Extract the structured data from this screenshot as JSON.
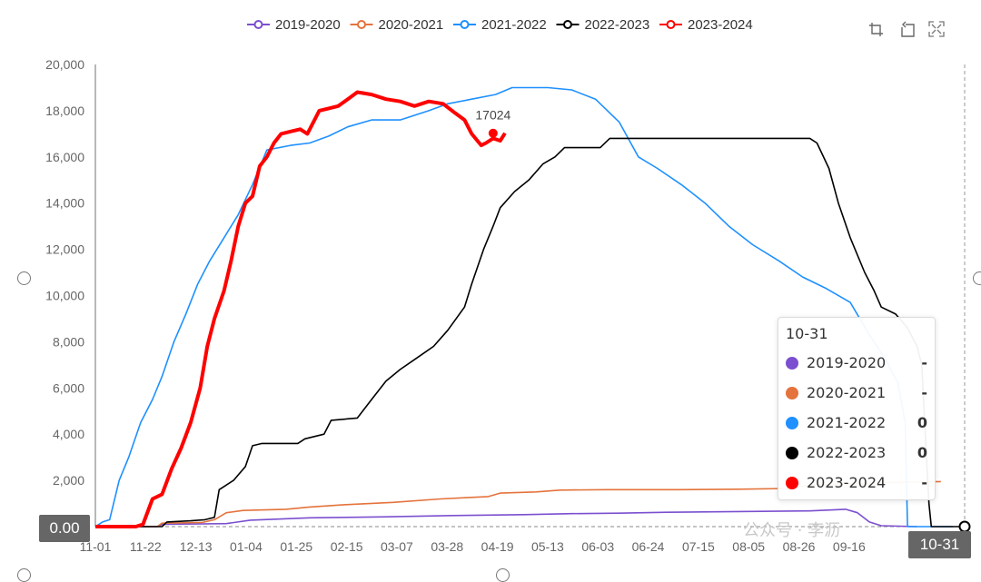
{
  "toolbox": {
    "icons": [
      "zoom-icon",
      "zoom-reset-icon",
      "fullscreen-icon"
    ]
  },
  "tooltip": {
    "title": "10-31",
    "rows": [
      {
        "name": "2019-2020",
        "value": "-",
        "color": "#7b4fcf"
      },
      {
        "name": "2020-2021",
        "value": "-",
        "color": "#e4733c"
      },
      {
        "name": "2021-2022",
        "value": "0",
        "color": "#1e90ff"
      },
      {
        "name": "2022-2023",
        "value": "0",
        "color": "#000000"
      },
      {
        "name": "2023-2024",
        "value": "-",
        "color": "#ff0000"
      }
    ]
  },
  "axis_pointer": {
    "x_label": "10-31",
    "y_label": "0.00"
  },
  "watermark": "公众号 · 李沥",
  "chart_data": {
    "type": "line",
    "x_ticks": [
      "11-01",
      "11-22",
      "12-13",
      "01-04",
      "01-25",
      "02-15",
      "03-07",
      "03-28",
      "04-19",
      "05-13",
      "06-03",
      "06-24",
      "07-15",
      "08-05",
      "08-26",
      "09-16"
    ],
    "ylim": [
      0,
      20000
    ],
    "y_ticks": [
      "20,000",
      "18,000",
      "16,000",
      "14,000",
      "12,000",
      "10,000",
      "8,000",
      "6,000",
      "4,000",
      "2,000"
    ],
    "grid": false,
    "legend_position": "top",
    "annotation": {
      "text": "17024",
      "series": "2023-2024",
      "x": 167,
      "y": 17024
    },
    "series": [
      {
        "name": "2019-2020",
        "color": "#7b4fcf",
        "points": [
          [
            0,
            0
          ],
          [
            26,
            0
          ],
          [
            28,
            100
          ],
          [
            55,
            130
          ],
          [
            65,
            280
          ],
          [
            90,
            380
          ],
          [
            120,
            420
          ],
          [
            150,
            480
          ],
          [
            180,
            520
          ],
          [
            200,
            560
          ],
          [
            220,
            580
          ],
          [
            240,
            620
          ],
          [
            260,
            640
          ],
          [
            280,
            660
          ],
          [
            300,
            680
          ],
          [
            315,
            750
          ],
          [
            320,
            600
          ],
          [
            325,
            200
          ],
          [
            330,
            40
          ],
          [
            345,
            0
          ]
        ]
      },
      {
        "name": "2020-2021",
        "color": "#e4733c",
        "points": [
          [
            0,
            0
          ],
          [
            26,
            0
          ],
          [
            28,
            150
          ],
          [
            45,
            180
          ],
          [
            50,
            300
          ],
          [
            55,
            600
          ],
          [
            62,
            700
          ],
          [
            80,
            750
          ],
          [
            90,
            850
          ],
          [
            105,
            950
          ],
          [
            125,
            1050
          ],
          [
            145,
            1200
          ],
          [
            155,
            1250
          ],
          [
            165,
            1300
          ],
          [
            170,
            1450
          ],
          [
            185,
            1500
          ],
          [
            195,
            1580
          ],
          [
            215,
            1600
          ],
          [
            245,
            1600
          ],
          [
            270,
            1620
          ],
          [
            290,
            1650
          ],
          [
            300,
            1800
          ],
          [
            320,
            1850
          ],
          [
            330,
            1900
          ],
          [
            355,
            1950
          ]
        ]
      },
      {
        "name": "2021-2022",
        "color": "#1e90ff",
        "points": [
          [
            0,
            0
          ],
          [
            3,
            200
          ],
          [
            6,
            300
          ],
          [
            10,
            2000
          ],
          [
            14,
            3000
          ],
          [
            19,
            4500
          ],
          [
            24,
            5500
          ],
          [
            28,
            6500
          ],
          [
            33,
            8000
          ],
          [
            38,
            9200
          ],
          [
            43,
            10500
          ],
          [
            48,
            11500
          ],
          [
            54,
            12500
          ],
          [
            60,
            13500
          ],
          [
            66,
            14800
          ],
          [
            72,
            16300
          ],
          [
            82,
            16500
          ],
          [
            90,
            16600
          ],
          [
            98,
            16900
          ],
          [
            106,
            17300
          ],
          [
            116,
            17600
          ],
          [
            128,
            17600
          ],
          [
            140,
            18000
          ],
          [
            148,
            18300
          ],
          [
            158,
            18500
          ],
          [
            168,
            18700
          ],
          [
            175,
            19000
          ],
          [
            190,
            19000
          ],
          [
            200,
            18900
          ],
          [
            210,
            18500
          ],
          [
            220,
            17500
          ],
          [
            228,
            16000
          ],
          [
            236,
            15500
          ],
          [
            246,
            14800
          ],
          [
            256,
            14000
          ],
          [
            266,
            13000
          ],
          [
            276,
            12200
          ],
          [
            287,
            11500
          ],
          [
            297,
            10800
          ],
          [
            307,
            10300
          ],
          [
            317,
            9700
          ],
          [
            325,
            8300
          ],
          [
            332,
            7200
          ],
          [
            337,
            6200
          ],
          [
            340,
            4500
          ],
          [
            341,
            0
          ],
          [
            360,
            0
          ]
        ]
      },
      {
        "name": "2022-2023",
        "color": "#000000",
        "points": [
          [
            0,
            0
          ],
          [
            28,
            0
          ],
          [
            30,
            200
          ],
          [
            40,
            250
          ],
          [
            46,
            300
          ],
          [
            50,
            400
          ],
          [
            52,
            1600
          ],
          [
            58,
            2000
          ],
          [
            63,
            2600
          ],
          [
            66,
            3500
          ],
          [
            70,
            3600
          ],
          [
            85,
            3600
          ],
          [
            88,
            3800
          ],
          [
            96,
            4000
          ],
          [
            99,
            4600
          ],
          [
            110,
            4700
          ],
          [
            116,
            5500
          ],
          [
            122,
            6300
          ],
          [
            128,
            6800
          ],
          [
            135,
            7300
          ],
          [
            142,
            7800
          ],
          [
            148,
            8500
          ],
          [
            155,
            9500
          ],
          [
            158,
            10500
          ],
          [
            163,
            12000
          ],
          [
            167,
            13000
          ],
          [
            170,
            13800
          ],
          [
            176,
            14500
          ],
          [
            182,
            15000
          ],
          [
            188,
            15700
          ],
          [
            193,
            16000
          ],
          [
            197,
            16400
          ],
          [
            212,
            16400
          ],
          [
            216,
            16800
          ],
          [
            235,
            16800
          ],
          [
            260,
            16800
          ],
          [
            290,
            16800
          ],
          [
            300,
            16800
          ],
          [
            303,
            16600
          ],
          [
            308,
            15500
          ],
          [
            312,
            14000
          ],
          [
            317,
            12500
          ],
          [
            323,
            11000
          ],
          [
            327,
            10200
          ],
          [
            330,
            9500
          ],
          [
            336,
            9200
          ],
          [
            341,
            8600
          ],
          [
            345,
            7800
          ],
          [
            347,
            7000
          ],
          [
            349,
            3000
          ],
          [
            350,
            1000
          ],
          [
            351,
            0
          ],
          [
            364,
            0
          ]
        ]
      },
      {
        "name": "2023-2024",
        "color": "#ff0000",
        "points": [
          [
            0,
            0
          ],
          [
            17,
            0
          ],
          [
            20,
            100
          ],
          [
            24,
            1200
          ],
          [
            28,
            1400
          ],
          [
            32,
            2500
          ],
          [
            36,
            3400
          ],
          [
            40,
            4500
          ],
          [
            44,
            6000
          ],
          [
            47,
            7800
          ],
          [
            50,
            9000
          ],
          [
            54,
            10200
          ],
          [
            57,
            11500
          ],
          [
            60,
            13000
          ],
          [
            63,
            14000
          ],
          [
            66,
            14300
          ],
          [
            69,
            15600
          ],
          [
            72,
            16000
          ],
          [
            75,
            16600
          ],
          [
            78,
            17000
          ],
          [
            82,
            17100
          ],
          [
            86,
            17200
          ],
          [
            89,
            17000
          ],
          [
            94,
            18000
          ],
          [
            98,
            18100
          ],
          [
            102,
            18200
          ],
          [
            106,
            18500
          ],
          [
            110,
            18800
          ],
          [
            116,
            18700
          ],
          [
            122,
            18500
          ],
          [
            128,
            18400
          ],
          [
            134,
            18200
          ],
          [
            140,
            18400
          ],
          [
            146,
            18300
          ],
          [
            151,
            17900
          ],
          [
            155,
            17600
          ],
          [
            158,
            17000
          ],
          [
            162,
            16500
          ],
          [
            164,
            16600
          ],
          [
            167,
            16800
          ],
          [
            170,
            16700
          ],
          [
            172,
            17024
          ]
        ]
      }
    ]
  }
}
